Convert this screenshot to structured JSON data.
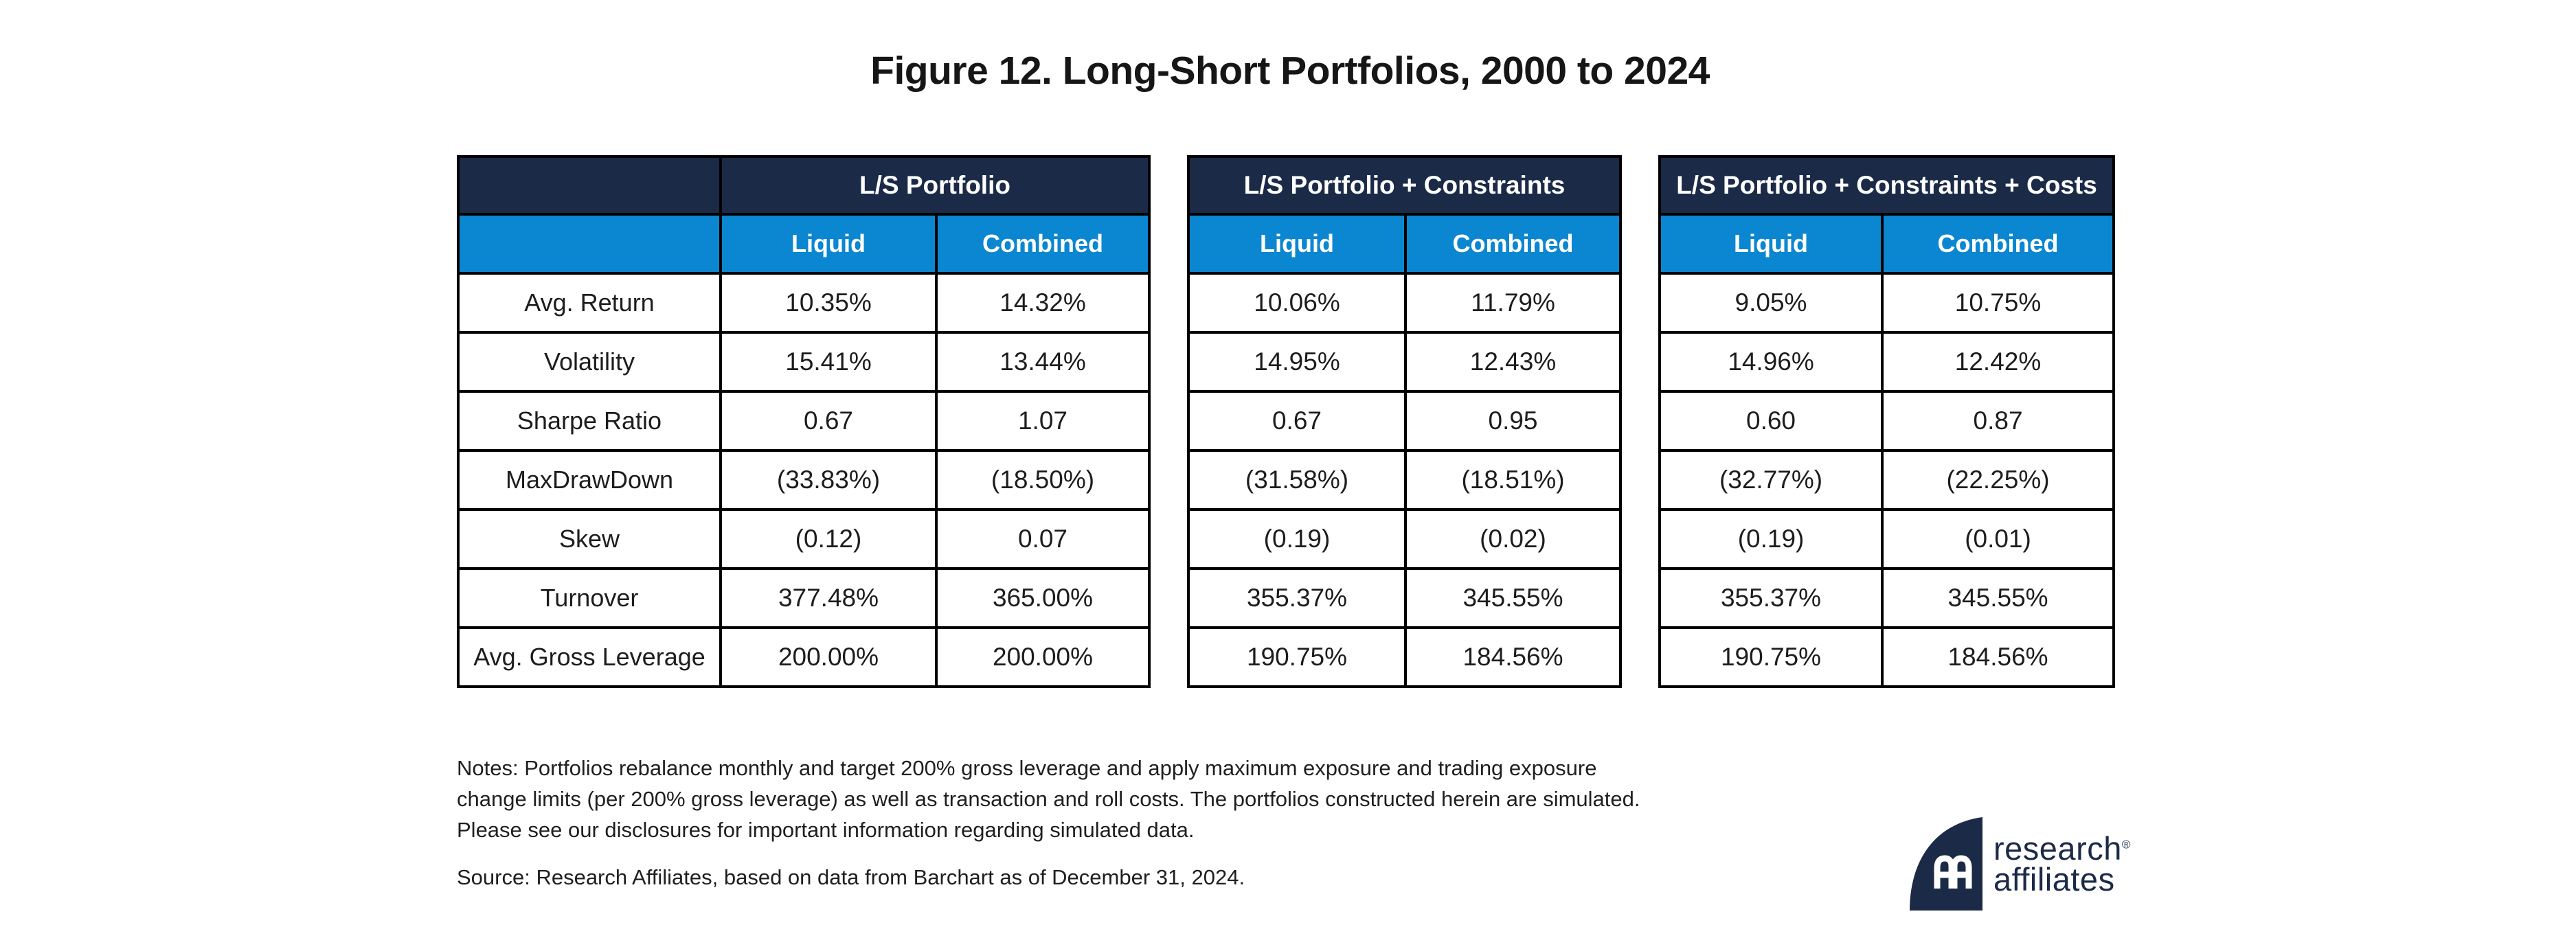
{
  "title": "Figure 12. Long-Short Portfolios, 2000 to 2024",
  "table": {
    "row_labels": [
      "Avg. Return",
      "Volatility",
      "Sharpe Ratio",
      "MaxDrawDown",
      "Skew",
      "Turnover",
      "Avg. Gross Leverage"
    ],
    "groups": [
      {
        "title": "L/S Portfolio",
        "columns": [
          "Liquid",
          "Combined"
        ],
        "rows": [
          [
            "10.35%",
            "14.32%"
          ],
          [
            "15.41%",
            "13.44%"
          ],
          [
            "0.67",
            "1.07"
          ],
          [
            "(33.83%)",
            "(18.50%)"
          ],
          [
            "(0.12)",
            "0.07"
          ],
          [
            "377.48%",
            "365.00%"
          ],
          [
            "200.00%",
            "200.00%"
          ]
        ]
      },
      {
        "title": "L/S Portfolio + Constraints",
        "columns": [
          "Liquid",
          "Combined"
        ],
        "rows": [
          [
            "10.06%",
            "11.79%"
          ],
          [
            "14.95%",
            "12.43%"
          ],
          [
            "0.67",
            "0.95"
          ],
          [
            "(31.58%)",
            "(18.51%)"
          ],
          [
            "(0.19)",
            "(0.02)"
          ],
          [
            "355.37%",
            "345.55%"
          ],
          [
            "190.75%",
            "184.56%"
          ]
        ]
      },
      {
        "title": "L/S Portfolio + Constraints + Costs",
        "columns": [
          "Liquid",
          "Combined"
        ],
        "rows": [
          [
            "9.05%",
            "10.75%"
          ],
          [
            "14.96%",
            "12.42%"
          ],
          [
            "0.60",
            "0.87"
          ],
          [
            "(32.77%)",
            "(22.25%)"
          ],
          [
            "(0.19)",
            "(0.01)"
          ],
          [
            "355.37%",
            "345.55%"
          ],
          [
            "190.75%",
            "184.56%"
          ]
        ]
      }
    ]
  },
  "notes": {
    "lines": [
      "Notes: Portfolios rebalance monthly and target 200% gross leverage and apply maximum exposure and trading exposure",
      "change limits (per 200% gross leverage) as well as transaction and roll costs. The portfolios constructed herein are simulated.",
      "Please see our disclosures for important information regarding simulated data."
    ]
  },
  "source": "Source: Research Affiliates, based on data from Barchart as of December 31, 2024.",
  "logo": {
    "line1": "research",
    "line2": "affiliates",
    "registered": "®"
  },
  "colors": {
    "header_navy": "#1b2a47",
    "header_blue": "#0b86d1",
    "negative_red": "#8b1a1a",
    "border_black": "#000000"
  }
}
